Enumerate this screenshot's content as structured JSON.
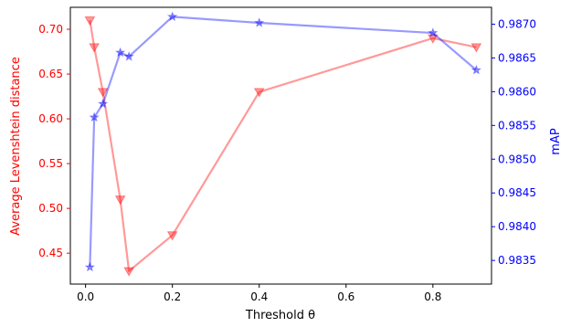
{
  "chart_data": {
    "type": "line",
    "xlabel": "Threshold θ",
    "ylabel_left": "Average Levenshtein distance",
    "ylabel_right": "mAP",
    "xlim": [
      -0.035,
      0.935
    ],
    "ylim_left": [
      0.4155,
      0.7245
    ],
    "ylim_right": [
      0.98315,
      0.98725
    ],
    "x_ticks": [
      0.0,
      0.2,
      0.4,
      0.6,
      0.8
    ],
    "x_tick_labels": [
      "0.0",
      "0.2",
      "0.4",
      "0.6",
      "0.8"
    ],
    "y_left_ticks": [
      0.45,
      0.5,
      0.55,
      0.6,
      0.65,
      0.7
    ],
    "y_left_tick_labels": [
      "0.45",
      "0.50",
      "0.55",
      "0.60",
      "0.65",
      "0.70"
    ],
    "y_right_ticks": [
      0.9835,
      0.984,
      0.9845,
      0.985,
      0.9855,
      0.986,
      0.9865,
      0.987
    ],
    "y_right_tick_labels": [
      "0.9835",
      "0.9840",
      "0.9845",
      "0.9850",
      "0.9855",
      "0.9860",
      "0.9865",
      "0.9870"
    ],
    "grid": false,
    "series": [
      {
        "axis": "left",
        "color": "#ff0000",
        "marker": "triangle-down",
        "x": [
          0.01,
          0.02,
          0.04,
          0.08,
          0.1,
          0.2,
          0.4,
          0.8,
          0.9
        ],
        "y": [
          0.71,
          0.68,
          0.63,
          0.51,
          0.43,
          0.47,
          0.63,
          0.69,
          0.68
        ]
      },
      {
        "axis": "right",
        "color": "#0000ff",
        "marker": "star",
        "x": [
          0.01,
          0.02,
          0.04,
          0.08,
          0.1,
          0.2,
          0.4,
          0.8,
          0.9
        ],
        "y": [
          0.9834,
          0.98562,
          0.98582,
          0.98658,
          0.98652,
          0.98711,
          0.98702,
          0.98687,
          0.98632
        ]
      }
    ]
  }
}
